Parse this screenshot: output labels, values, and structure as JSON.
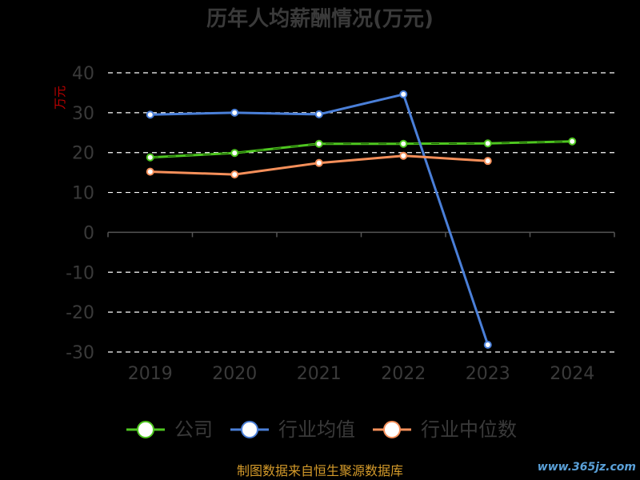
{
  "chart_data": {
    "type": "line",
    "title": "历年人均薪酬情况(万元)",
    "ylabel": "万元",
    "x": [
      "2019",
      "2020",
      "2021",
      "2022",
      "2023",
      "2024"
    ],
    "ylim": [
      -30,
      40
    ],
    "yticks": [
      "40",
      "30",
      "20",
      "10",
      "0",
      "-10",
      "-20",
      "-30"
    ],
    "grid": true,
    "legend_position": "bottom",
    "series": [
      {
        "name": "公司",
        "color": "#4ec620",
        "dashed": true,
        "values": [
          18.8,
          19.9,
          22.2,
          22.2,
          22.3,
          22.8
        ]
      },
      {
        "name": "行业均值",
        "color": "#4a7fd8",
        "dashed": false,
        "values": [
          29.5,
          30.0,
          29.6,
          34.6,
          -28.2,
          null
        ]
      },
      {
        "name": "行业中位数",
        "color": "#f58f5a",
        "dashed": false,
        "values": [
          15.2,
          14.5,
          17.4,
          19.2,
          17.9,
          null
        ]
      }
    ]
  },
  "footer": "制图数据来自恒生聚源数据库",
  "watermark": "www.365jz.com"
}
